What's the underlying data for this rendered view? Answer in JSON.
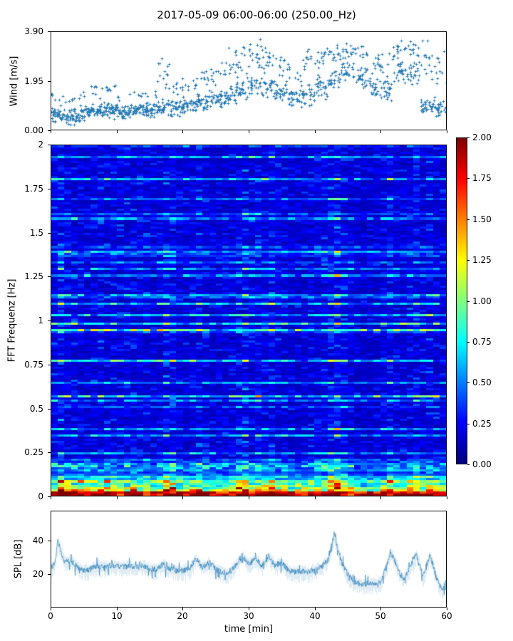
{
  "figure": {
    "title": "2017-05-09 06:00-06:00 (250.00_Hz)",
    "background": "#ffffff",
    "accent_color": "#1f77b4",
    "spine_color": "#000000"
  },
  "x_axis": {
    "label": "time [min]",
    "tick_labels": [
      "0",
      "10",
      "20",
      "30",
      "40",
      "50",
      "60"
    ],
    "tick_values": [
      0,
      10,
      20,
      30,
      40,
      50,
      60
    ],
    "lim": [
      0,
      60
    ]
  },
  "wind_panel": {
    "ylabel": "Wind [m/s]",
    "tick_labels": [
      "0.00",
      "1.95",
      "3.90"
    ],
    "tick_values": [
      0,
      1.95,
      3.9
    ],
    "ylim": [
      0,
      3.9
    ]
  },
  "spec_panel": {
    "ylabel": "FFT Frequenz [Hz]",
    "tick_labels": [
      "0",
      "0.25",
      "0.5",
      "0.75",
      "1",
      "1.25",
      "1.5",
      "1.75",
      "2"
    ],
    "tick_values": [
      0,
      0.25,
      0.5,
      0.75,
      1,
      1.25,
      1.5,
      1.75,
      2
    ],
    "ylim": [
      0,
      2
    ]
  },
  "spl_panel": {
    "ylabel": "SPL [dB]",
    "tick_labels": [
      "20",
      "40"
    ],
    "tick_values": [
      20,
      40
    ],
    "ylim": [
      0,
      57.9
    ]
  },
  "colorbar": {
    "colormap": "jet",
    "lim": [
      0,
      2
    ],
    "tick_labels": [
      "0.00",
      "0.25",
      "0.50",
      "0.75",
      "1.00",
      "1.25",
      "1.50",
      "1.75",
      "2.00"
    ],
    "tick_values": [
      0,
      0.25,
      0.5,
      0.75,
      1,
      1.25,
      1.5,
      1.75,
      2
    ]
  },
  "chart_data": [
    {
      "type": "scatter",
      "panel": "wind",
      "ylabel": "Wind [m/s]",
      "xlabel": "time [min]",
      "xlim": [
        0,
        60
      ],
      "ylim": [
        0,
        3.9
      ],
      "marker": "+",
      "color": "#1f77b4",
      "seed": 42,
      "segment_minutes": 2,
      "envelope": [
        [
          0.2,
          1.0,
          40,
          1.0,
          1.6,
          6
        ],
        [
          0.15,
          0.9,
          40,
          0.9,
          1.4,
          5
        ],
        [
          0.3,
          1.0,
          40,
          1.0,
          1.6,
          4
        ],
        [
          0.4,
          1.1,
          40,
          1.1,
          1.9,
          8
        ],
        [
          0.4,
          1.2,
          42,
          1.2,
          2.0,
          8
        ],
        [
          0.4,
          1.0,
          40,
          1.0,
          1.5,
          4
        ],
        [
          0.5,
          1.1,
          42,
          1.1,
          1.6,
          5
        ],
        [
          0.4,
          1.1,
          40,
          1.1,
          1.7,
          5
        ],
        [
          0.5,
          1.3,
          36,
          1.4,
          2.95,
          14
        ],
        [
          0.5,
          1.3,
          36,
          1.3,
          2.3,
          10
        ],
        [
          0.6,
          1.4,
          34,
          1.4,
          2.2,
          8
        ],
        [
          0.7,
          1.6,
          34,
          1.6,
          2.6,
          10
        ],
        [
          0.8,
          1.7,
          32,
          1.7,
          2.8,
          10
        ],
        [
          0.9,
          1.8,
          30,
          1.8,
          3.3,
          12
        ],
        [
          1.0,
          2.0,
          28,
          2.0,
          3.6,
          16
        ],
        [
          1.2,
          2.2,
          26,
          2.2,
          3.7,
          18
        ],
        [
          1.2,
          2.2,
          26,
          2.2,
          3.6,
          16
        ],
        [
          1.0,
          2.0,
          28,
          2.0,
          3.3,
          12
        ],
        [
          0.8,
          1.7,
          30,
          1.7,
          2.8,
          8
        ],
        [
          0.9,
          1.9,
          28,
          1.9,
          3.4,
          12
        ],
        [
          1.2,
          2.2,
          26,
          2.2,
          3.5,
          14
        ],
        [
          1.4,
          2.4,
          26,
          2.4,
          3.6,
          16
        ],
        [
          1.8,
          2.8,
          26,
          2.8,
          3.6,
          14
        ],
        [
          1.6,
          2.7,
          26,
          2.7,
          3.5,
          12
        ],
        [
          1.2,
          2.3,
          26,
          2.3,
          3.2,
          10
        ],
        [
          1.0,
          2.2,
          26,
          2.2,
          3.2,
          10
        ],
        [
          1.8,
          2.8,
          26,
          2.8,
          3.7,
          14
        ],
        [
          1.6,
          2.8,
          24,
          2.8,
          3.6,
          12
        ],
        [
          0.5,
          1.3,
          30,
          1.5,
          3.7,
          14
        ],
        [
          0.5,
          1.4,
          30,
          1.5,
          3.4,
          12
        ]
      ]
    },
    {
      "type": "heatmap",
      "panel": "spectrogram",
      "ylabel": "FFT Frequenz [Hz]",
      "xlim": [
        0,
        60
      ],
      "ylim": [
        0,
        2
      ],
      "colormap": "jet",
      "clim": [
        0,
        2
      ],
      "grid": {
        "cols": 60,
        "rows": 160
      },
      "seed": 7,
      "base_level": 0.12,
      "base_noise": 0.3,
      "row_streak_prob": 0.3,
      "bottom_boost": {
        "f_cutoff": 0.18,
        "amp": 1.9
      },
      "col_profile": [
        1.0,
        1.3,
        1.1,
        1.0,
        0.95,
        0.9,
        0.95,
        1.0,
        1.0,
        1.0,
        1.0,
        0.95,
        1.0,
        0.95,
        1.0,
        0.9,
        0.95,
        1.35,
        1.25,
        0.95,
        0.85,
        0.9,
        1.15,
        1.0,
        0.8,
        0.8,
        0.85,
        0.9,
        1.2,
        1.3,
        1.05,
        1.15,
        1.0,
        1.2,
        0.95,
        1.0,
        0.8,
        0.8,
        0.85,
        0.9,
        1.0,
        1.1,
        1.3,
        1.5,
        1.1,
        0.9,
        0.75,
        0.7,
        0.75,
        0.8,
        0.9,
        1.2,
        1.0,
        0.85,
        1.0,
        1.2,
        0.9,
        1.15,
        0.9,
        0.8
      ],
      "description": "Low (blue) energy over 0-2 Hz with light-blue horizontal streaks; strong red/orange/yellow band below ~0.15 Hz; brighter columns near minutes 17-19, 28-33, 41-44, 51-57; darker columns near 24-26, 36-39, 46-49."
    },
    {
      "type": "line",
      "panel": "spl",
      "ylabel": "SPL [dB]",
      "xlabel": "time [min]",
      "xlim": [
        0,
        60
      ],
      "ylim": [
        0,
        57.9
      ],
      "color": "#1f77b4",
      "seed": 99,
      "noise_band_db": 3.5,
      "keypoints": [
        [
          0,
          24
        ],
        [
          0.5,
          26
        ],
        [
          1,
          40
        ],
        [
          1.3,
          36
        ],
        [
          2,
          27
        ],
        [
          3,
          28
        ],
        [
          4,
          24
        ],
        [
          5,
          22
        ],
        [
          6,
          23
        ],
        [
          7,
          25
        ],
        [
          8,
          24
        ],
        [
          9,
          25
        ],
        [
          10,
          25
        ],
        [
          11,
          24
        ],
        [
          12,
          25
        ],
        [
          13,
          24
        ],
        [
          14,
          25
        ],
        [
          15,
          23
        ],
        [
          16,
          23
        ],
        [
          17,
          26
        ],
        [
          18,
          23
        ],
        [
          19,
          22
        ],
        [
          20,
          22
        ],
        [
          21,
          23
        ],
        [
          22,
          29
        ],
        [
          23,
          24
        ],
        [
          24,
          27
        ],
        [
          25,
          23
        ],
        [
          26,
          21
        ],
        [
          27,
          20
        ],
        [
          28,
          25
        ],
        [
          29,
          31
        ],
        [
          30,
          26
        ],
        [
          31,
          29
        ],
        [
          32,
          25
        ],
        [
          33,
          30
        ],
        [
          34,
          25
        ],
        [
          35,
          27
        ],
        [
          36,
          22
        ],
        [
          37,
          21
        ],
        [
          38,
          22
        ],
        [
          39,
          21
        ],
        [
          40,
          23
        ],
        [
          41,
          24
        ],
        [
          42,
          28
        ],
        [
          43,
          44
        ],
        [
          44,
          28
        ],
        [
          45,
          20
        ],
        [
          46,
          15
        ],
        [
          47,
          14
        ],
        [
          48,
          14
        ],
        [
          49,
          14
        ],
        [
          50,
          15
        ],
        [
          51,
          25
        ],
        [
          51.5,
          33
        ],
        [
          52,
          30
        ],
        [
          53,
          20
        ],
        [
          53.5,
          17
        ],
        [
          54,
          20
        ],
        [
          55,
          28
        ],
        [
          55.5,
          32
        ],
        [
          56,
          25
        ],
        [
          56.5,
          18
        ],
        [
          57,
          25
        ],
        [
          57.5,
          31
        ],
        [
          58,
          26
        ],
        [
          58.5,
          18
        ],
        [
          59,
          13
        ],
        [
          59.5,
          11
        ],
        [
          60,
          16
        ]
      ]
    }
  ]
}
